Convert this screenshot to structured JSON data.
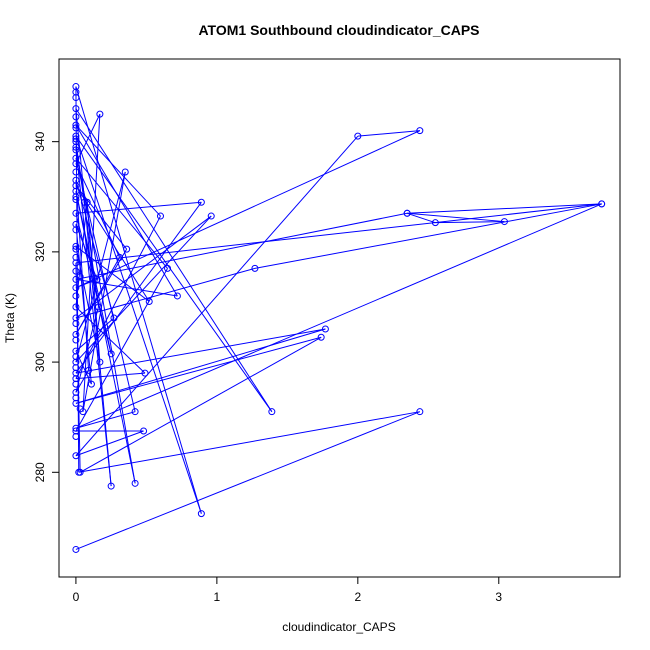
{
  "chart_data": {
    "type": "line",
    "title": "ATOM1 Southbound cloudindicator_CAPS",
    "xlabel": "cloudindicator_CAPS",
    "ylabel": "Theta (K)",
    "xlim": [
      -0.12,
      3.86
    ],
    "ylim": [
      261,
      355
    ],
    "xticks": [
      0,
      1,
      2,
      3
    ],
    "yticks": [
      280,
      300,
      320,
      340
    ],
    "tick_labels_x": [
      "0",
      "1",
      "2",
      "3"
    ],
    "tick_labels_y": [
      "280",
      "300",
      "320",
      "340"
    ],
    "series_color": "#0000ff",
    "markers": "open-circle",
    "series": [
      {
        "name": "ATOM1 Southbound",
        "points": [
          {
            "x": 0.0,
            "y": 266.0
          },
          {
            "x": 2.44,
            "y": 291.0
          },
          {
            "x": 0.02,
            "y": 280.0
          },
          {
            "x": 0.0,
            "y": 350.0
          },
          {
            "x": 0.89,
            "y": 272.5
          },
          {
            "x": 0.0,
            "y": 341.0
          },
          {
            "x": 1.39,
            "y": 291.0
          },
          {
            "x": 0.0,
            "y": 346.0
          },
          {
            "x": 0.25,
            "y": 277.5
          },
          {
            "x": 0.0,
            "y": 339.0
          },
          {
            "x": 0.42,
            "y": 278.0
          },
          {
            "x": 0.0,
            "y": 331.0
          },
          {
            "x": 0.25,
            "y": 301.5
          },
          {
            "x": 0.0,
            "y": 327.0
          },
          {
            "x": 0.89,
            "y": 329.0
          },
          {
            "x": 0.0,
            "y": 298.0
          },
          {
            "x": 1.77,
            "y": 306.0
          },
          {
            "x": 0.0,
            "y": 292.5
          },
          {
            "x": 1.74,
            "y": 304.5
          },
          {
            "x": 0.03,
            "y": 280.0
          },
          {
            "x": 0.0,
            "y": 318.0
          },
          {
            "x": 3.73,
            "y": 328.7
          },
          {
            "x": 2.35,
            "y": 327.0
          },
          {
            "x": 3.04,
            "y": 325.5
          },
          {
            "x": 2.55,
            "y": 325.3
          },
          {
            "x": 2.35,
            "y": 327.0
          },
          {
            "x": 0.0,
            "y": 315.0
          },
          {
            "x": 0.72,
            "y": 312.0
          },
          {
            "x": 0.0,
            "y": 343.0
          },
          {
            "x": 0.6,
            "y": 326.5
          },
          {
            "x": 0.0,
            "y": 297.0
          },
          {
            "x": 0.49,
            "y": 298.0
          },
          {
            "x": 0.0,
            "y": 310.0
          },
          {
            "x": 0.08,
            "y": 329.0
          },
          {
            "x": 0.17,
            "y": 300.0
          },
          {
            "x": 0.0,
            "y": 321.0
          },
          {
            "x": 0.52,
            "y": 311.0
          },
          {
            "x": 0.0,
            "y": 332.0
          },
          {
            "x": 0.36,
            "y": 320.5
          },
          {
            "x": 0.0,
            "y": 305.0
          },
          {
            "x": 0.31,
            "y": 319.0
          },
          {
            "x": 0.0,
            "y": 336.0
          },
          {
            "x": 0.17,
            "y": 345.0
          },
          {
            "x": 0.05,
            "y": 291.0
          },
          {
            "x": 0.35,
            "y": 334.5
          },
          {
            "x": 0.0,
            "y": 300.0
          },
          {
            "x": 0.96,
            "y": 326.5
          },
          {
            "x": 0.0,
            "y": 308.0
          },
          {
            "x": 1.27,
            "y": 317.0
          },
          {
            "x": 3.73,
            "y": 328.7
          },
          {
            "x": 0.0,
            "y": 288.0
          },
          {
            "x": 0.42,
            "y": 291.0
          },
          {
            "x": 0.0,
            "y": 337.0
          },
          {
            "x": 0.65,
            "y": 317.0
          },
          {
            "x": 0.0,
            "y": 287.5
          },
          {
            "x": 0.48,
            "y": 287.5
          },
          {
            "x": 0.0,
            "y": 283.0
          },
          {
            "x": 2.0,
            "y": 341.0
          },
          {
            "x": 2.44,
            "y": 342.0
          },
          {
            "x": 0.0,
            "y": 313.5
          },
          {
            "x": 0.15,
            "y": 315.0
          },
          {
            "x": 0.0,
            "y": 325.0
          },
          {
            "x": 0.11,
            "y": 296.0
          },
          {
            "x": 0.0,
            "y": 302.0
          },
          {
            "x": 0.27,
            "y": 308.0
          },
          {
            "x": 0.0,
            "y": 333.0
          },
          {
            "x": 0.09,
            "y": 298.5
          },
          {
            "x": 0.0,
            "y": 294.5
          },
          {
            "x": 0.16,
            "y": 310.0
          },
          {
            "x": 0.0,
            "y": 340.0
          }
        ]
      }
    ],
    "extra_markers": [
      {
        "x": 0.0,
        "y": 349.0
      },
      {
        "x": 0.0,
        "y": 348.0
      },
      {
        "x": 0.0,
        "y": 344.5
      },
      {
        "x": 0.0,
        "y": 342.5
      },
      {
        "x": 0.0,
        "y": 340.5
      },
      {
        "x": 0.0,
        "y": 338.5
      },
      {
        "x": 0.0,
        "y": 334.5
      },
      {
        "x": 0.0,
        "y": 330.0
      },
      {
        "x": 0.0,
        "y": 329.5
      },
      {
        "x": 0.0,
        "y": 324.0
      },
      {
        "x": 0.0,
        "y": 320.5
      },
      {
        "x": 0.0,
        "y": 319.0
      },
      {
        "x": 0.0,
        "y": 316.5
      },
      {
        "x": 0.0,
        "y": 312.0
      },
      {
        "x": 0.0,
        "y": 307.0
      },
      {
        "x": 0.0,
        "y": 304.0
      },
      {
        "x": 0.0,
        "y": 301.0
      },
      {
        "x": 0.0,
        "y": 299.0
      },
      {
        "x": 0.0,
        "y": 296.0
      },
      {
        "x": 0.0,
        "y": 293.5
      },
      {
        "x": 0.0,
        "y": 286.5
      },
      {
        "x": 0.03,
        "y": 315.5
      },
      {
        "x": 0.03,
        "y": 291.5
      },
      {
        "x": 0.06,
        "y": 329.0
      }
    ]
  }
}
